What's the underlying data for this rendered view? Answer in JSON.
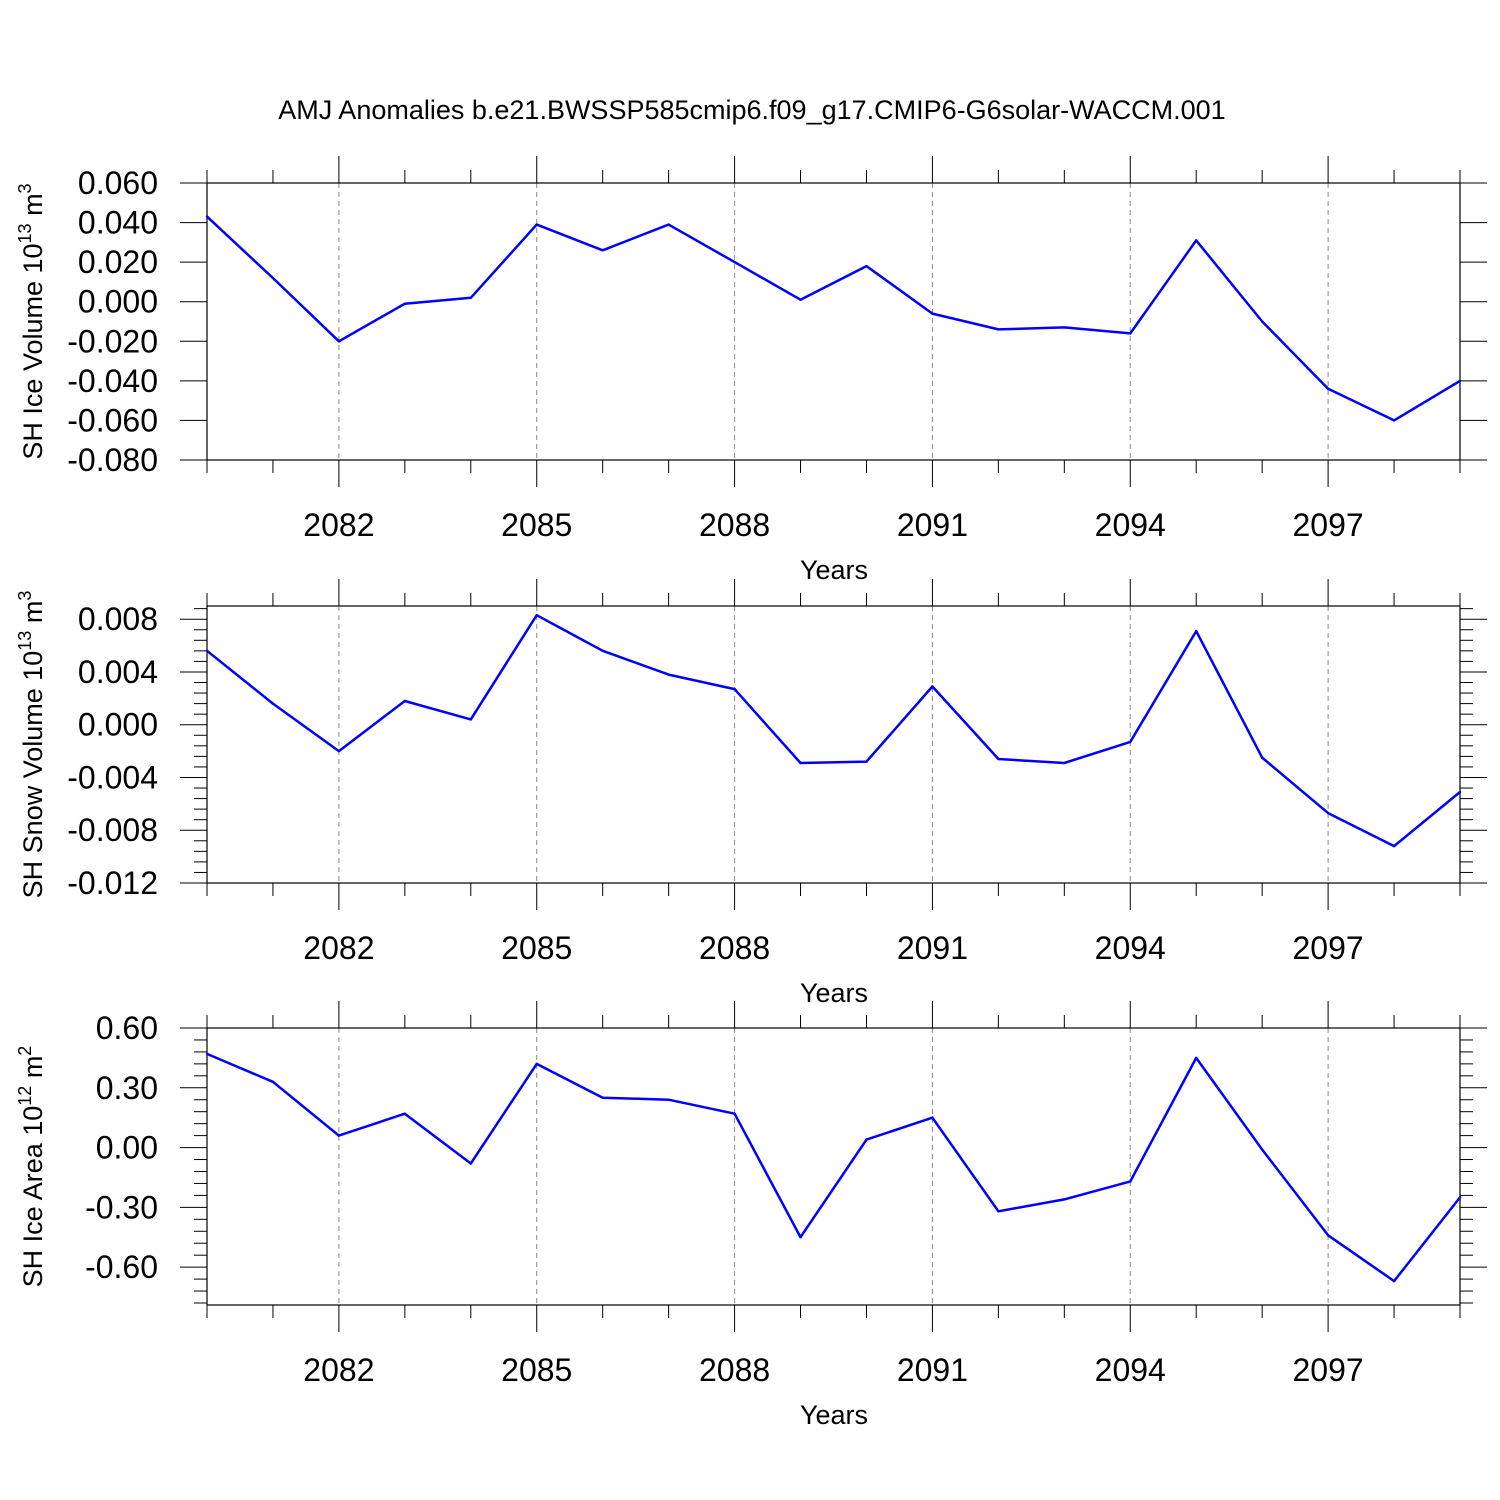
{
  "title": "AMJ Anomalies b.e21.BWSSP585cmip6.f09_g17.CMIP6-G6solar-WACCM.001",
  "colors": {
    "series": "#0000ff",
    "axis": "#000000",
    "grid": "#888888"
  },
  "chart_data": [
    {
      "type": "line",
      "ylabel": {
        "main": "SH Ice Volume 10",
        "sup": "13",
        "unit": " m",
        "unit_sup": "3"
      },
      "xlabel": "Years",
      "xlim": [
        2080,
        2099
      ],
      "ylim": [
        -0.08,
        0.06
      ],
      "xticks": [
        2082,
        2085,
        2088,
        2091,
        2094,
        2097
      ],
      "yticks": [
        0.06,
        0.04,
        0.02,
        0.0,
        -0.02,
        -0.04,
        -0.06,
        -0.08
      ],
      "ytick_labels": [
        "0.060",
        "0.040",
        "0.020",
        "0.000",
        "-0.020",
        "-0.040",
        "-0.060",
        "-0.080"
      ],
      "x": [
        2080,
        2081,
        2082,
        2083,
        2084,
        2085,
        2086,
        2087,
        2088,
        2089,
        2090,
        2091,
        2092,
        2093,
        2094,
        2095,
        2096,
        2097,
        2098,
        2099
      ],
      "values": [
        0.043,
        0.012,
        -0.02,
        -0.001,
        0.002,
        0.039,
        0.026,
        0.039,
        0.02,
        0.001,
        0.018,
        -0.006,
        -0.014,
        -0.013,
        -0.016,
        0.031,
        -0.01,
        -0.044,
        -0.06,
        -0.04
      ],
      "grid": "vertical dashed at labeled years"
    },
    {
      "type": "line",
      "ylabel": {
        "main": "SH Snow Volume 10",
        "sup": "13",
        "unit": " m",
        "unit_sup": "3"
      },
      "xlabel": "Years",
      "xlim": [
        2080,
        2099
      ],
      "ylim": [
        -0.012,
        0.009
      ],
      "xticks": [
        2082,
        2085,
        2088,
        2091,
        2094,
        2097
      ],
      "yticks": [
        0.008,
        0.004,
        0.0,
        -0.004,
        -0.008,
        -0.012
      ],
      "ytick_labels": [
        "0.008",
        "0.004",
        "0.000",
        "-0.004",
        "-0.008",
        "-0.012"
      ],
      "x": [
        2080,
        2081,
        2082,
        2083,
        2084,
        2085,
        2086,
        2087,
        2088,
        2089,
        2090,
        2091,
        2092,
        2093,
        2094,
        2095,
        2096,
        2097,
        2098,
        2099
      ],
      "values": [
        0.0056,
        0.0016,
        -0.002,
        0.0018,
        0.0004,
        0.0083,
        0.0056,
        0.0038,
        0.0027,
        -0.0029,
        -0.0028,
        0.0029,
        -0.0026,
        -0.0029,
        -0.0013,
        0.0071,
        -0.0025,
        -0.0067,
        -0.0092,
        -0.0051
      ],
      "grid": "vertical dashed at labeled years"
    },
    {
      "type": "line",
      "ylabel": {
        "main": "SH Ice Area 10",
        "sup": "12",
        "unit": " m",
        "unit_sup": "2"
      },
      "xlabel": "Years",
      "xlim": [
        2080,
        2099
      ],
      "ylim": [
        -0.79,
        0.6
      ],
      "xticks": [
        2082,
        2085,
        2088,
        2091,
        2094,
        2097
      ],
      "yticks": [
        0.6,
        0.3,
        0.0,
        -0.3,
        -0.6
      ],
      "ytick_labels": [
        "0.60",
        "0.30",
        "0.00",
        "-0.30",
        "-0.60"
      ],
      "x": [
        2080,
        2081,
        2082,
        2083,
        2084,
        2085,
        2086,
        2087,
        2088,
        2089,
        2090,
        2091,
        2092,
        2093,
        2094,
        2095,
        2096,
        2097,
        2098,
        2099
      ],
      "values": [
        0.47,
        0.33,
        0.06,
        0.17,
        -0.08,
        0.42,
        0.25,
        0.24,
        0.17,
        -0.45,
        0.04,
        0.15,
        -0.32,
        -0.26,
        -0.17,
        0.45,
        -0.01,
        -0.44,
        -0.67,
        -0.25
      ],
      "grid": "vertical dashed at labeled years"
    }
  ]
}
